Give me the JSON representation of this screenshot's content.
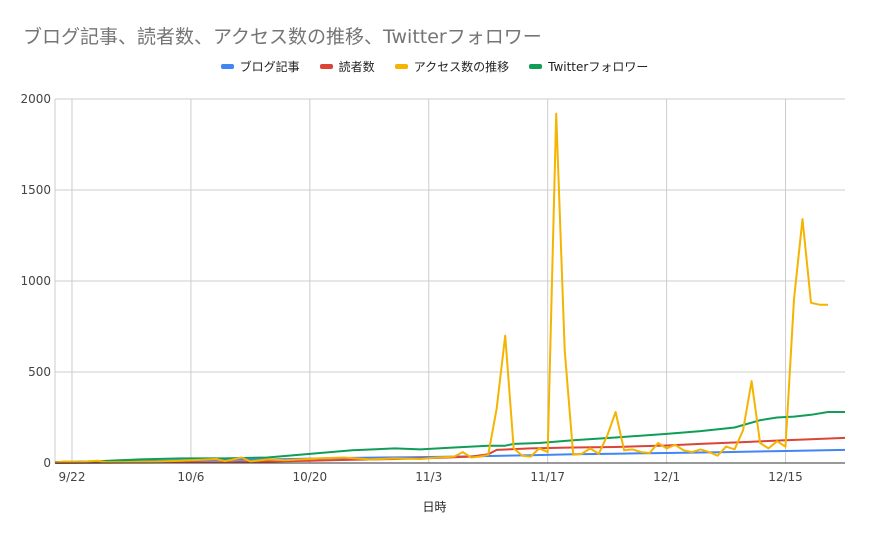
{
  "chart_data": {
    "type": "line",
    "title": "ブログ記事、読者数、アクセス数の推移、Twitterフォロワー",
    "xlabel": "日時",
    "ylabel": "",
    "ylim": [
      0,
      2000
    ],
    "yticks": [
      0,
      500,
      1000,
      1500,
      2000
    ],
    "xlim": [
      "9/20",
      "12/22"
    ],
    "xticks": [
      "9/22",
      "10/6",
      "10/20",
      "11/3",
      "11/17",
      "12/1",
      "12/15"
    ],
    "grid": true,
    "legend_position": "top",
    "series": [
      {
        "name": "ブログ記事",
        "color": "#4285f4",
        "points": [
          [
            "9/20",
            1
          ],
          [
            "9/25",
            6
          ],
          [
            "10/1",
            11
          ],
          [
            "10/8",
            15
          ],
          [
            "10/15",
            19
          ],
          [
            "10/20",
            24
          ],
          [
            "10/25",
            28
          ],
          [
            "11/1",
            32
          ],
          [
            "11/8",
            36
          ],
          [
            "11/15",
            43
          ],
          [
            "11/20",
            48
          ],
          [
            "11/25",
            51
          ],
          [
            "12/1",
            55
          ],
          [
            "12/8",
            60
          ],
          [
            "12/15",
            66
          ],
          [
            "12/22",
            72
          ]
        ]
      },
      {
        "name": "読者数",
        "color": "#db4437",
        "points": [
          [
            "9/20",
            0
          ],
          [
            "9/30",
            2
          ],
          [
            "10/10",
            4
          ],
          [
            "10/20",
            12
          ],
          [
            "10/25",
            18
          ],
          [
            "10/30",
            22
          ],
          [
            "11/4",
            28
          ],
          [
            "11/8",
            35
          ],
          [
            "11/10",
            48
          ],
          [
            "11/11",
            72
          ],
          [
            "11/15",
            80
          ],
          [
            "11/20",
            85
          ],
          [
            "11/25",
            88
          ],
          [
            "12/1",
            96
          ],
          [
            "12/5",
            105
          ],
          [
            "12/10",
            115
          ],
          [
            "12/15",
            125
          ],
          [
            "12/18",
            130
          ],
          [
            "12/22",
            138
          ]
        ]
      },
      {
        "name": "アクセス数の推移",
        "color": "#f4b400",
        "points": [
          [
            "9/20",
            2
          ],
          [
            "9/21",
            8
          ],
          [
            "9/23",
            6
          ],
          [
            "9/25",
            12
          ],
          [
            "9/26",
            5
          ],
          [
            "9/28",
            5
          ],
          [
            "10/2",
            8
          ],
          [
            "10/5",
            12
          ],
          [
            "10/9",
            22
          ],
          [
            "10/10",
            10
          ],
          [
            "10/12",
            30
          ],
          [
            "10/13",
            8
          ],
          [
            "10/15",
            20
          ],
          [
            "10/17",
            15
          ],
          [
            "10/19",
            20
          ],
          [
            "10/21",
            25
          ],
          [
            "10/24",
            30
          ],
          [
            "10/27",
            20
          ],
          [
            "10/30",
            25
          ],
          [
            "11/2",
            22
          ],
          [
            "11/4",
            30
          ],
          [
            "11/6",
            35
          ],
          [
            "11/7",
            60
          ],
          [
            "11/8",
            30
          ],
          [
            "11/9",
            35
          ],
          [
            "11/10",
            45
          ],
          [
            "11/11",
            300
          ],
          [
            "11/12",
            700
          ],
          [
            "11/13",
            80
          ],
          [
            "11/14",
            40
          ],
          [
            "11/15",
            35
          ],
          [
            "11/16",
            80
          ],
          [
            "11/17",
            60
          ],
          [
            "11/18",
            1920
          ],
          [
            "11/19",
            620
          ],
          [
            "11/20",
            45
          ],
          [
            "11/21",
            50
          ],
          [
            "11/22",
            80
          ],
          [
            "11/23",
            50
          ],
          [
            "11/24",
            150
          ],
          [
            "11/25",
            280
          ],
          [
            "11/26",
            70
          ],
          [
            "11/27",
            75
          ],
          [
            "11/28",
            60
          ],
          [
            "11/29",
            55
          ],
          [
            "11/30",
            110
          ],
          [
            "12/1",
            80
          ],
          [
            "12/2",
            100
          ],
          [
            "12/3",
            70
          ],
          [
            "12/4",
            60
          ],
          [
            "12/5",
            75
          ],
          [
            "12/6",
            60
          ],
          [
            "12/7",
            40
          ],
          [
            "12/8",
            90
          ],
          [
            "12/9",
            75
          ],
          [
            "12/10",
            180
          ],
          [
            "12/11",
            450
          ],
          [
            "12/12",
            110
          ],
          [
            "12/13",
            80
          ],
          [
            "12/14",
            120
          ],
          [
            "12/15",
            90
          ],
          [
            "12/16",
            900
          ],
          [
            "12/17",
            1340
          ],
          [
            "12/18",
            880
          ],
          [
            "12/19",
            870
          ],
          [
            "12/20",
            870
          ]
        ]
      },
      {
        "name": "Twitterフォロワー",
        "color": "#0f9d58",
        "points": [
          [
            "9/20",
            5
          ],
          [
            "9/25",
            10
          ],
          [
            "9/30",
            20
          ],
          [
            "10/5",
            25
          ],
          [
            "10/10",
            25
          ],
          [
            "10/15",
            30
          ],
          [
            "10/20",
            50
          ],
          [
            "10/25",
            70
          ],
          [
            "10/30",
            80
          ],
          [
            "11/2",
            75
          ],
          [
            "11/6",
            85
          ],
          [
            "11/10",
            95
          ],
          [
            "11/12",
            95
          ],
          [
            "11/13",
            105
          ],
          [
            "11/16",
            110
          ],
          [
            "11/20",
            125
          ],
          [
            "11/25",
            140
          ],
          [
            "12/1",
            160
          ],
          [
            "12/5",
            175
          ],
          [
            "12/9",
            195
          ],
          [
            "12/12",
            235
          ],
          [
            "12/14",
            250
          ],
          [
            "12/16",
            255
          ],
          [
            "12/18",
            265
          ],
          [
            "12/20",
            280
          ],
          [
            "12/22",
            280
          ]
        ]
      }
    ]
  }
}
